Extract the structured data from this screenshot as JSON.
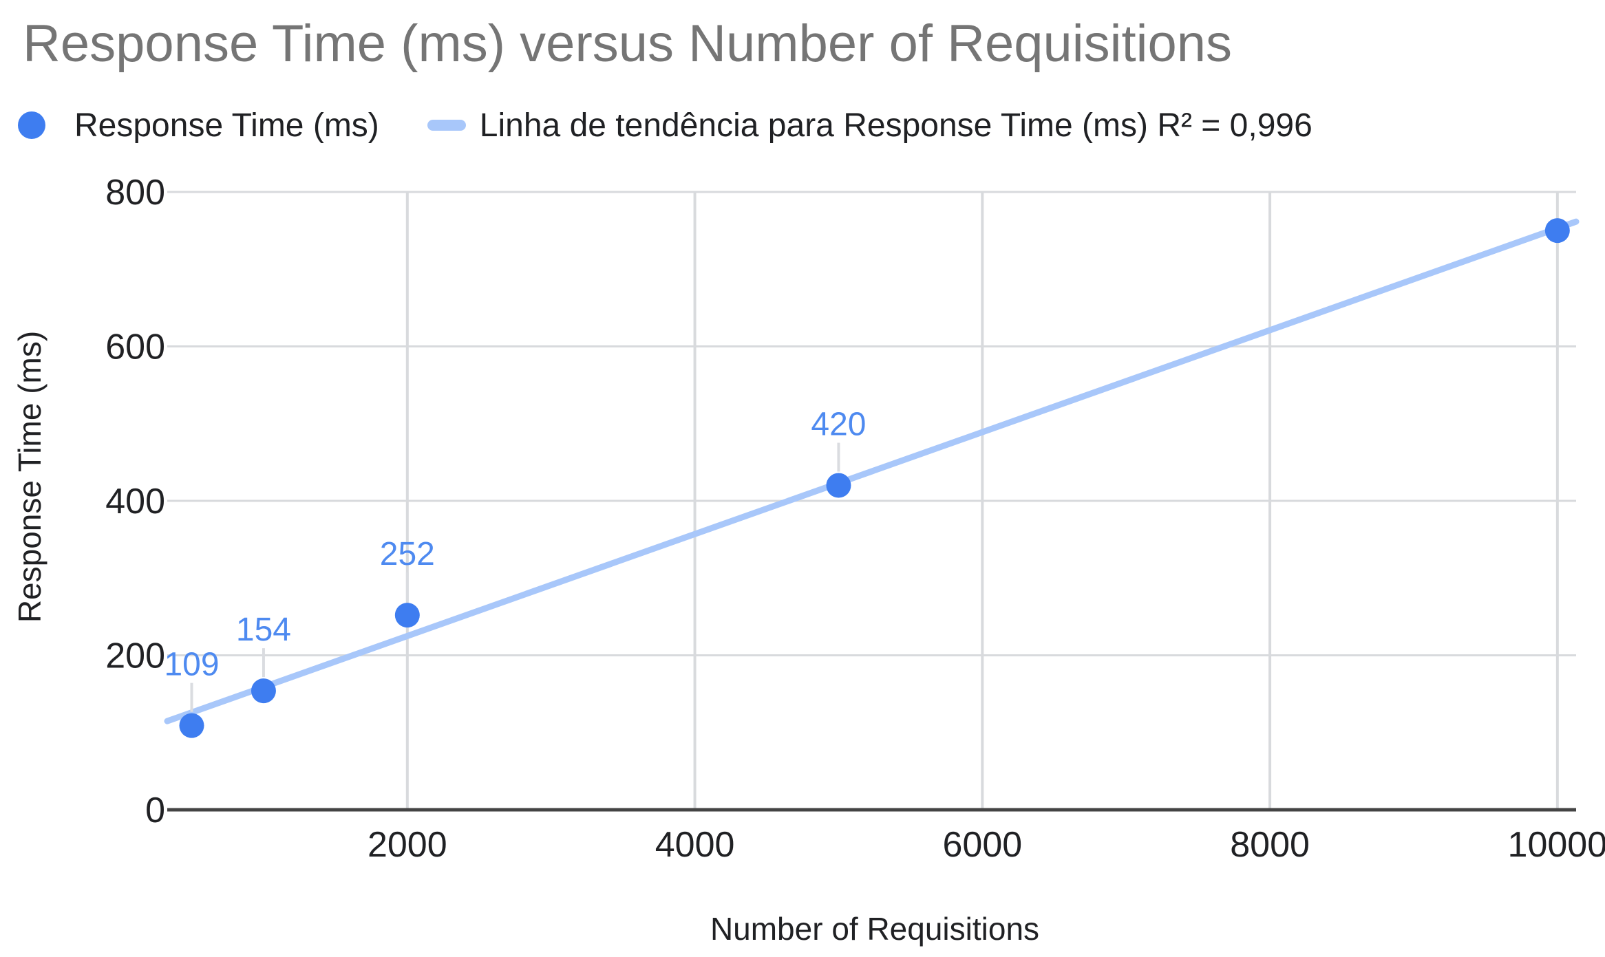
{
  "title": "Response Time (ms) versus Number of Requisitions",
  "legend": {
    "series_label": "Response Time (ms)",
    "trendline_label": "Linha de tendência para Response Time (ms) R² = 0,996"
  },
  "colors": {
    "series_point": "#3E7DF0",
    "data_label": "#4E8AF0",
    "trendline": "#A8C7FA",
    "title_text": "#757575",
    "legend_text": "#202124",
    "tick_text": "#202124",
    "axis_title_text": "#202124",
    "gridline": "#D8DADD",
    "leader_line": "#DADCE0",
    "axis_line": "#444444",
    "background": "#FFFFFF"
  },
  "chart_data": {
    "type": "scatter",
    "title": "Response Time (ms) versus Number of Requisitions",
    "xlabel": "Number of Requisitions",
    "ylabel": "Response Time (ms)",
    "series": [
      {
        "name": "Response Time (ms)",
        "x": [
          500,
          1000,
          2000,
          5000,
          10000
        ],
        "y": [
          109,
          154,
          252,
          420,
          750
        ],
        "point_labels": [
          "109",
          "154",
          "252",
          "420",
          ""
        ]
      }
    ],
    "trendline": {
      "label": "Linha de tendência para Response Time (ms)",
      "type": "linear",
      "slope": 0.066,
      "intercept": 93,
      "r_squared_text": "R² = 0,996"
    },
    "x_ticks": [
      2000,
      4000,
      6000,
      8000,
      10000
    ],
    "y_ticks": [
      0,
      200,
      400,
      600,
      800
    ],
    "xlim": [
      330,
      10130
    ],
    "ylim": [
      0,
      800
    ],
    "grid": true,
    "legend_position": "top"
  }
}
